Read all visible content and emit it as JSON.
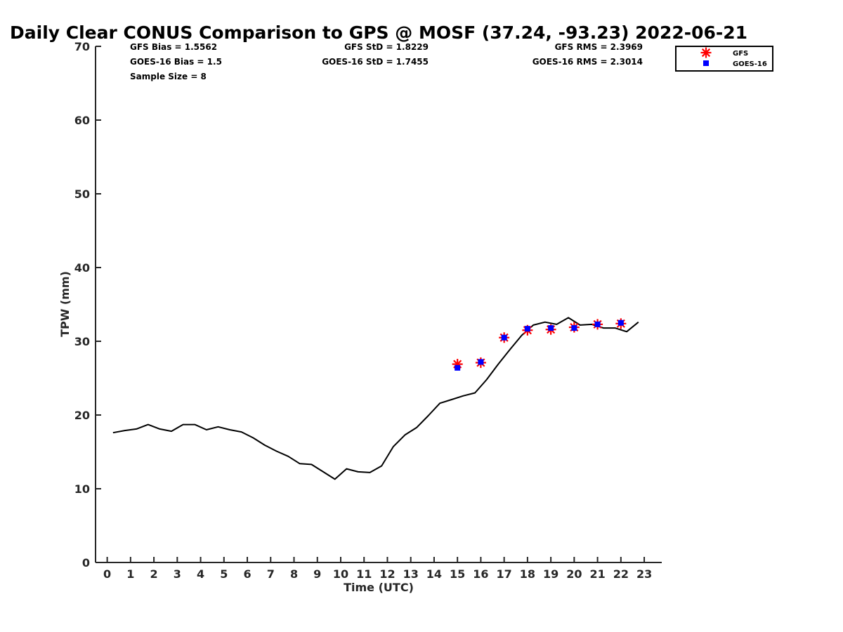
{
  "chart_data": {
    "type": "line",
    "title": "Daily Clear CONUS Comparison to GPS @ MOSF (37.24, -93.23) 2022-06-21",
    "xlabel": "Time (UTC)",
    "ylabel": "TPW (mm)",
    "xlim": [
      -0.5,
      23.75
    ],
    "ylim": [
      0,
      70
    ],
    "xticks": [
      "0",
      "1",
      "2",
      "3",
      "4",
      "5",
      "6",
      "7",
      "8",
      "9",
      "10",
      "11",
      "12",
      "13",
      "14",
      "15",
      "16",
      "17",
      "18",
      "19",
      "20",
      "21",
      "22",
      "23"
    ],
    "yticks": [
      "0",
      "10",
      "20",
      "30",
      "40",
      "50",
      "60",
      "70"
    ],
    "grid": false,
    "legend_position": "top-right (outside axes)",
    "stats": [
      "GFS Bias = 1.5562",
      "GOES-16 Bias = 1.5",
      "Sample Size = 8",
      "GFS StD = 1.8229",
      "GOES-16 StD = 1.7455",
      "GFS RMS = 2.3969",
      "GOES-16 RMS = 2.3014"
    ],
    "series": [
      {
        "style": "line",
        "color": "#000000",
        "x": [
          0.25,
          0.75,
          1.25,
          1.75,
          2.25,
          2.75,
          3.25,
          3.75,
          4.25,
          4.75,
          5.25,
          5.75,
          6.25,
          6.75,
          7.25,
          7.75,
          8.25,
          8.75,
          9.25,
          9.75,
          10.25,
          10.75,
          11.25,
          11.75,
          12.25,
          12.75,
          13.25,
          13.75,
          14.25,
          14.75,
          15.25,
          15.75,
          16.25,
          16.75,
          17.25,
          17.75,
          18.25,
          18.75,
          19.25,
          19.75,
          20.25,
          20.75,
          21.25,
          21.75,
          22.25,
          22.75
        ],
        "y": [
          17.6,
          17.9,
          18.1,
          18.7,
          18.1,
          17.8,
          18.7,
          18.7,
          18.0,
          18.4,
          18.0,
          17.7,
          16.9,
          15.9,
          15.1,
          14.4,
          13.4,
          13.3,
          12.3,
          11.3,
          12.7,
          12.3,
          12.2,
          13.1,
          15.7,
          17.3,
          18.3,
          19.9,
          21.6,
          22.1,
          22.6,
          23.0,
          24.8,
          26.9,
          28.9,
          30.8,
          32.2,
          32.6,
          32.3,
          33.2,
          32.2,
          32.3,
          31.8,
          31.8,
          31.3,
          32.6
        ]
      },
      {
        "name": "GFS",
        "style": "marker",
        "marker": "asterisk",
        "color": "#ff0000",
        "x": [
          15,
          16,
          17,
          18,
          19,
          20,
          21,
          22
        ],
        "y": [
          26.9,
          27.1,
          30.5,
          31.5,
          31.6,
          31.9,
          32.3,
          32.4
        ]
      },
      {
        "name": "GOES-16",
        "style": "marker",
        "marker": "square",
        "color": "#0000ff",
        "x": [
          15,
          16,
          17,
          18,
          19,
          20,
          21,
          22
        ],
        "y": [
          26.4,
          27.2,
          30.5,
          31.7,
          31.8,
          31.8,
          32.3,
          32.5
        ]
      }
    ]
  }
}
